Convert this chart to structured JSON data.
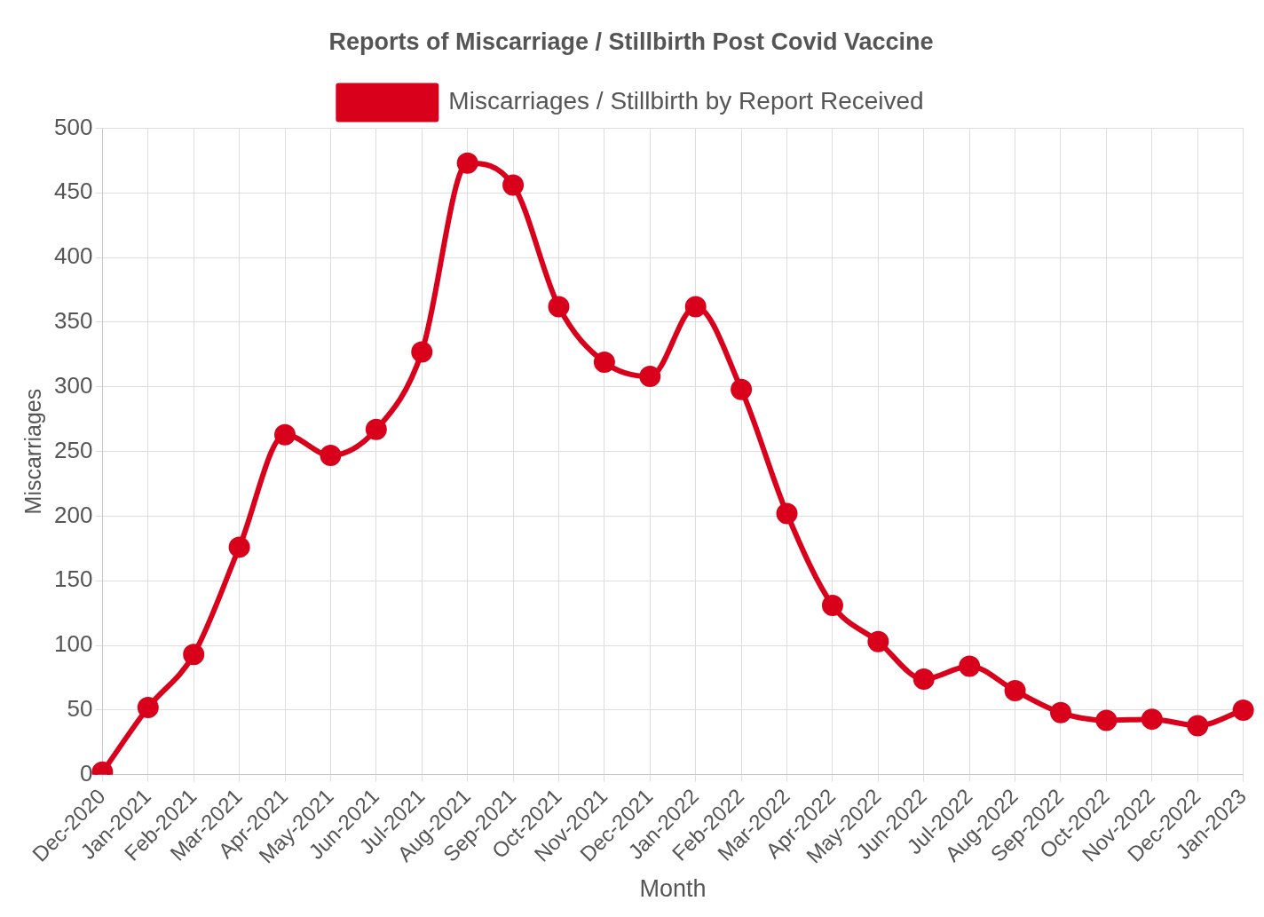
{
  "chart_data": {
    "type": "line",
    "title": "Reports of Miscarriage / Stillbirth Post Covid Vaccine",
    "xlabel": "Month",
    "ylabel": "Miscarriages",
    "categories": [
      "Dec-2020",
      "Jan-2021",
      "Feb-2021",
      "Mar-2021",
      "Apr-2021",
      "May-2021",
      "Jun-2021",
      "Jul-2021",
      "Aug-2021",
      "Sep-2021",
      "Oct-2021",
      "Nov-2021",
      "Dec-2021",
      "Jan-2022",
      "Feb-2022",
      "Mar-2022",
      "Apr-2022",
      "May-2022",
      "Jun-2022",
      "Jul-2022",
      "Aug-2022",
      "Sep-2022",
      "Oct-2022",
      "Nov-2022",
      "Dec-2022",
      "Jan-2023"
    ],
    "series": [
      {
        "name": "Miscarriages / Stillbirth by Report Received",
        "color": "#d9001b",
        "values": [
          2,
          52,
          93,
          176,
          263,
          247,
          267,
          327,
          473,
          456,
          362,
          319,
          308,
          362,
          298,
          202,
          131,
          103,
          74,
          84,
          65,
          48,
          42,
          43,
          38,
          50
        ]
      }
    ],
    "ylim": [
      0,
      500
    ],
    "yticks": [
      0,
      50,
      100,
      150,
      200,
      250,
      300,
      350,
      400,
      450,
      500
    ],
    "grid": true,
    "legend": "top",
    "marker": "circle",
    "line_style": "solid"
  }
}
